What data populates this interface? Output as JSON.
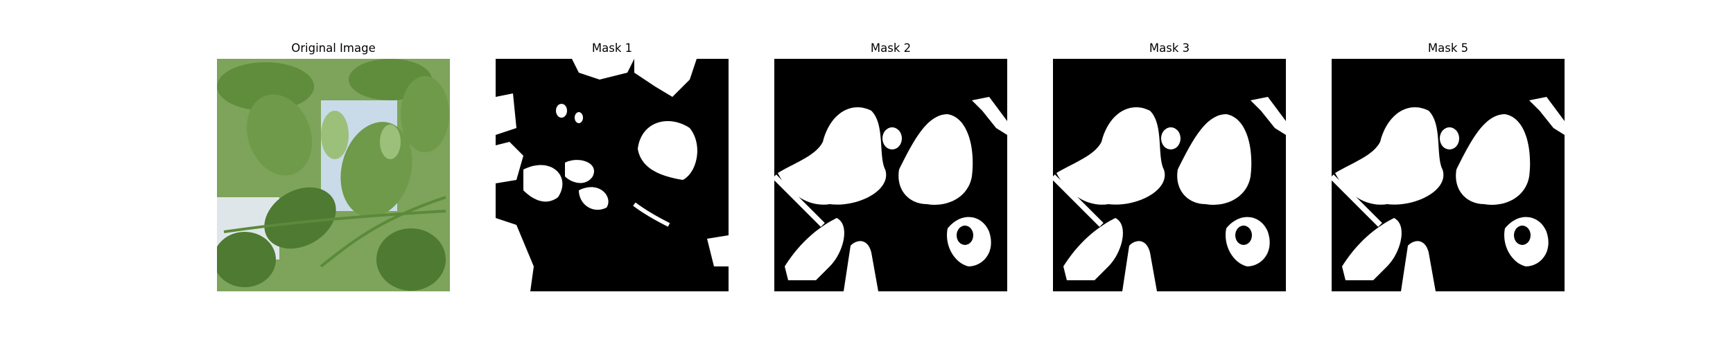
{
  "panels": [
    {
      "title": "Original Image",
      "kind": "photo"
    },
    {
      "title": "Mask 1",
      "kind": "mask"
    },
    {
      "title": "Mask 2",
      "kind": "mask"
    },
    {
      "title": "Mask 3",
      "kind": "mask"
    },
    {
      "title": "Mask 5",
      "kind": "mask"
    }
  ],
  "colors": {
    "mask_background": "#000000",
    "mask_foreground": "#ffffff",
    "leaf_dark": "#4e7a32",
    "leaf_mid": "#6f9a4a",
    "leaf_light": "#9cc07a",
    "sky": "#c9dbe8"
  }
}
